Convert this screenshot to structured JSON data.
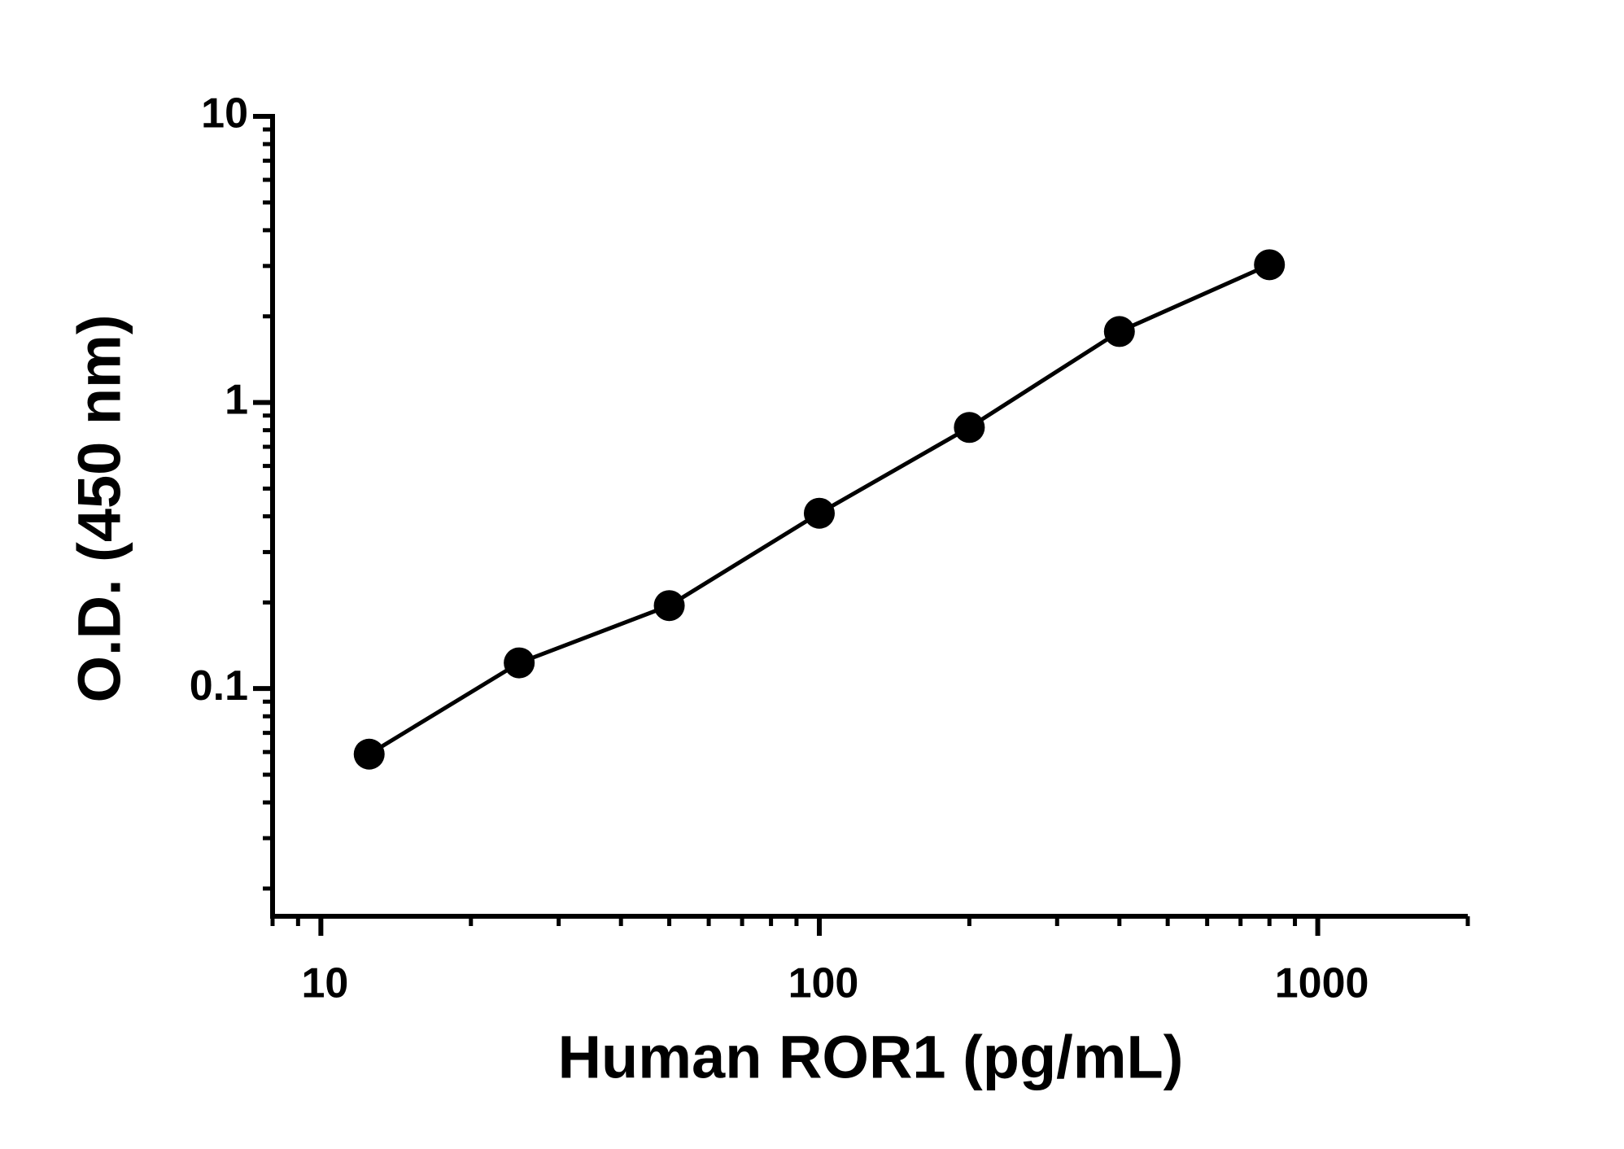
{
  "chart_data": {
    "type": "scatter",
    "x_label": "Human ROR1 (pg/mL)",
    "y_label": "O.D. (450 nm)",
    "series": [
      {
        "name": "ROR1",
        "color": "#000000",
        "x": [
          12.5,
          25,
          50,
          100,
          200,
          400,
          800
        ],
        "values": [
          0.059,
          0.123,
          0.195,
          0.41,
          0.818,
          1.77,
          3.03
        ]
      }
    ],
    "xlim": [
      8,
      2000
    ],
    "xticks": [
      10,
      100,
      1000
    ],
    "ylim": [
      0.016,
      10
    ],
    "yticks": [
      0.1,
      1,
      10
    ],
    "xscale": "log",
    "yscale": "log",
    "line": true,
    "grid": false
  }
}
